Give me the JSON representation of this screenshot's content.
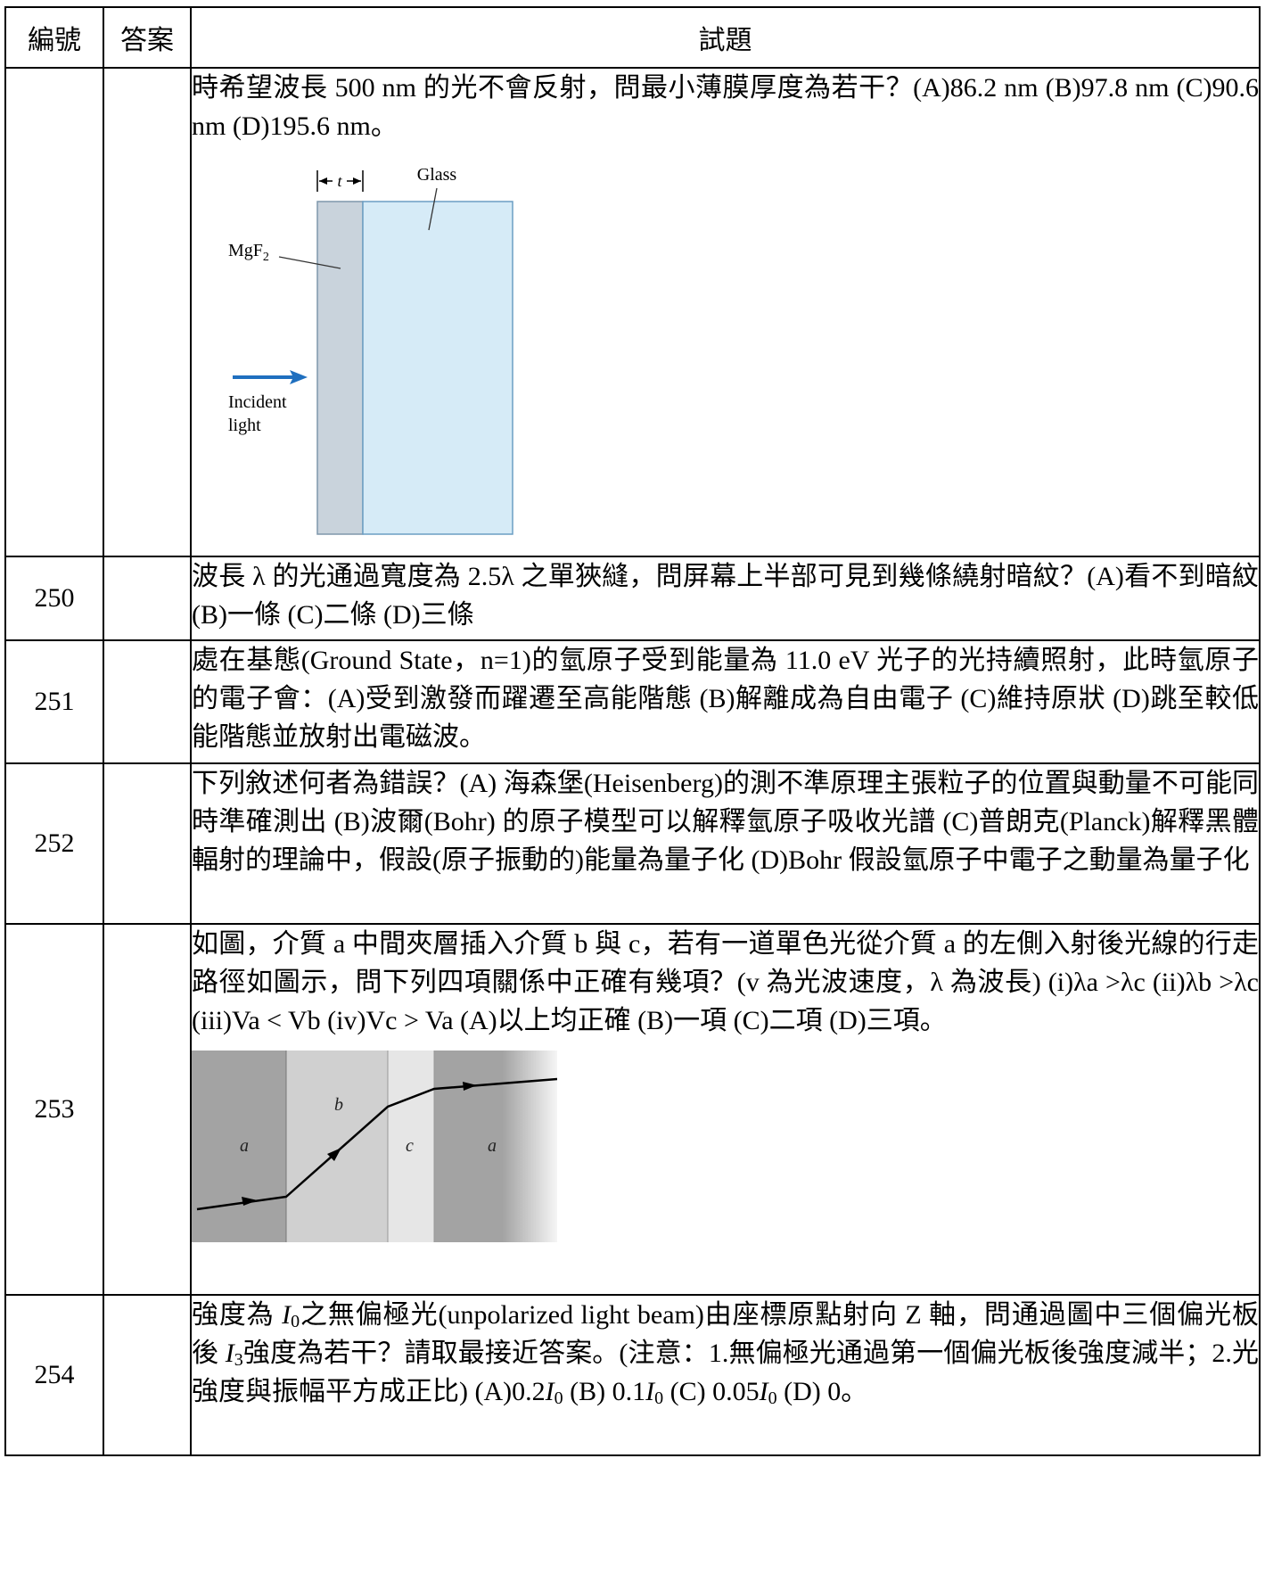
{
  "table": {
    "headers": {
      "number": "編號",
      "answer": "答案",
      "question": "試題"
    },
    "rows": [
      {
        "number": "",
        "answer": "",
        "text": "時希望波長 500 nm 的光不會反射，問最小薄膜厚度為若干？(A)86.2 nm (B)97.8 nm (C)90.6 nm (D)195.6 nm。",
        "figure": {
          "thickness_label": "t",
          "glass_label": "Glass",
          "coating_label": "MgF",
          "coating_subscript": "2",
          "incident_line1": "Incident",
          "incident_line2": "light",
          "colors": {
            "coating": "#c9d3dc",
            "glass": "#d6ebf7",
            "arrow": "#1f6fbf"
          }
        }
      },
      {
        "number": "250",
        "answer": "",
        "text": "波長 λ 的光通過寬度為 2.5λ 之單狹縫，問屏幕上半部可見到幾條繞射暗紋？(A)看不到暗紋 (B)一條 (C)二條 (D)三條"
      },
      {
        "number": "251",
        "answer": "",
        "text": "處在基態(Ground State，n=1)的氫原子受到能量為 11.0 eV 光子的光持續照射，此時氫原子的電子會：(A)受到激發而躍遷至高能階態 (B)解離成為自由電子 (C)維持原狀 (D)跳至較低能階態並放射出電磁波。"
      },
      {
        "number": "252",
        "answer": "",
        "text": "下列敘述何者為錯誤？(A) 海森堡(Heisenberg)的測不準原理主張粒子的位置與動量不可能同時準確測出 (B)波爾(Bohr) 的原子模型可以解釋氫原子吸收光譜 (C)普朗克(Planck)解釋黑體輻射的理論中，假設(原子振動的)能量為量子化 (D)Bohr 假設氫原子中電子之動量為量子化"
      },
      {
        "number": "253",
        "answer": "",
        "text": "如圖，介質 a 中間夾層插入介質 b 與 c，若有一道單色光從介質 a 的左側入射後光線的行走路徑如圖示，問下列四項關係中正確有幾項？(v 為光波速度，λ 為波長) (i)λa >λc (ii)λb >λc (iii)Va < Vb (iv)Vc > Va (A)以上均正確 (B)一項 (C)二項 (D)三項。",
        "figure": {
          "labels": [
            "a",
            "b",
            "c",
            "a"
          ],
          "colors": {
            "medium_a": "#a3a3a3",
            "medium_b": "#d0d0d0",
            "medium_c": "#e6e6e6"
          }
        }
      },
      {
        "number": "254",
        "answer": "",
        "text_part1": "強度為 ",
        "symbol_I0": "I",
        "sub_0": "0",
        "text_part2": "之無偏極光(unpolarized light beam)由座標原點射向 Z 軸，問通過圖中三個偏光板後 ",
        "symbol_I3": "I",
        "sub_3": "3",
        "text_part3": "強度為若干？請取最接近答案。(注意：1.無偏極光通過第一個偏光板後強度減半；2.光強度與振幅平方成正比) (A)0.2",
        "text_part4": " (B) 0.1",
        "text_part5": "  (C) 0.05",
        "text_part6": "  (D) 0。"
      }
    ]
  }
}
